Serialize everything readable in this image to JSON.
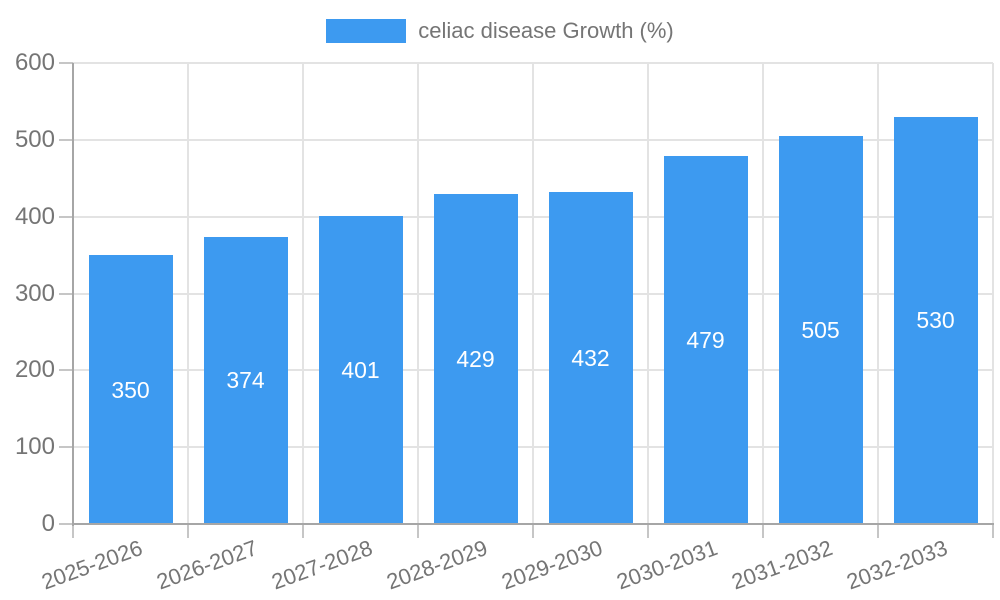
{
  "legend": {
    "label": "celiac disease Growth (%)"
  },
  "chart_data": {
    "type": "bar",
    "title": "celiac disease Growth (%)",
    "categories": [
      "2025-2026",
      "2026-2027",
      "2027-2028",
      "2028-2029",
      "2029-2030",
      "2030-2031",
      "2031-2032",
      "2032-2033"
    ],
    "values": [
      350,
      374,
      401,
      429,
      432,
      479,
      505,
      530
    ],
    "ylim": [
      0,
      600
    ],
    "y_ticks": [
      0,
      100,
      200,
      300,
      400,
      500,
      600
    ],
    "grid": true,
    "legend_position": "top",
    "colors": {
      "bar": "#3d9af0",
      "grid": "#e3e3e3",
      "axis_line": "#a6a6a6",
      "tick": "#c6c6c6",
      "axis_text": "#757575",
      "value_text": "#ffffff"
    }
  }
}
